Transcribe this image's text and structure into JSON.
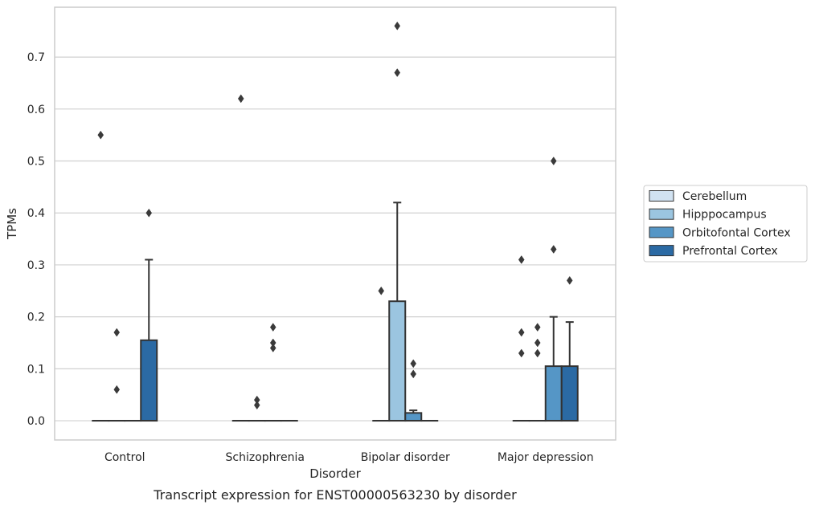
{
  "chart_data": {
    "type": "box",
    "caption": "Transcript expression for ENST00000563230 by disorder",
    "xlabel": "Disorder",
    "ylabel": "TPMs",
    "ylim": [
      -0.037,
      0.796
    ],
    "yticks": [
      0.0,
      0.1,
      0.2,
      0.3,
      0.4,
      0.5,
      0.6,
      0.7
    ],
    "ytick_labels": [
      "0.0",
      "0.1",
      "0.2",
      "0.3",
      "0.4",
      "0.5",
      "0.6",
      "0.7"
    ],
    "grid": "horizontal",
    "legend_position": "right",
    "categories": [
      "Control",
      "Schizophrenia",
      "Bipolar disorder",
      "Major depression"
    ],
    "series": [
      {
        "name": "Cerebellum",
        "color": "#d1e2f1",
        "boxes": [
          {
            "q1": 0,
            "median": 0,
            "q3": 0,
            "whisker_low": 0,
            "whisker_high": 0,
            "outliers": [
              0.55
            ]
          },
          {
            "q1": 0,
            "median": 0,
            "q3": 0,
            "whisker_low": 0,
            "whisker_high": 0,
            "outliers": [
              0.62
            ]
          },
          {
            "q1": 0,
            "median": 0,
            "q3": 0,
            "whisker_low": 0,
            "whisker_high": 0,
            "outliers": [
              0.25
            ]
          },
          {
            "q1": 0,
            "median": 0,
            "q3": 0,
            "whisker_low": 0,
            "whisker_high": 0,
            "outliers": [
              0.31,
              0.17,
              0.13
            ]
          }
        ]
      },
      {
        "name": "Hipppocampus",
        "color": "#9bc5e0",
        "boxes": [
          {
            "q1": 0,
            "median": 0,
            "q3": 0,
            "whisker_low": 0,
            "whisker_high": 0,
            "outliers": [
              0.17,
              0.06
            ]
          },
          {
            "q1": 0,
            "median": 0,
            "q3": 0,
            "whisker_low": 0,
            "whisker_high": 0,
            "outliers": [
              0.04,
              0.03
            ]
          },
          {
            "q1": 0,
            "median": 0,
            "q3": 0.23,
            "whisker_low": 0,
            "whisker_high": 0.42,
            "outliers": [
              0.76,
              0.67
            ]
          },
          {
            "q1": 0,
            "median": 0,
            "q3": 0,
            "whisker_low": 0,
            "whisker_high": 0,
            "outliers": [
              0.18,
              0.15,
              0.13
            ]
          }
        ]
      },
      {
        "name": "Orbitofontal Cortex",
        "color": "#5596c6",
        "boxes": [
          {
            "q1": 0,
            "median": 0,
            "q3": 0,
            "whisker_low": 0,
            "whisker_high": 0,
            "outliers": []
          },
          {
            "q1": 0,
            "median": 0,
            "q3": 0,
            "whisker_low": 0,
            "whisker_high": 0,
            "outliers": [
              0.18,
              0.15,
              0.14
            ]
          },
          {
            "q1": 0,
            "median": 0,
            "q3": 0.015,
            "whisker_low": 0,
            "whisker_high": 0.02,
            "outliers": [
              0.11,
              0.09
            ]
          },
          {
            "q1": 0,
            "median": 0,
            "q3": 0.105,
            "whisker_low": 0,
            "whisker_high": 0.2,
            "outliers": [
              0.5,
              0.33
            ]
          }
        ]
      },
      {
        "name": "Prefrontal Cortex",
        "color": "#2b6aa4",
        "boxes": [
          {
            "q1": 0,
            "median": 0,
            "q3": 0.155,
            "whisker_low": 0,
            "whisker_high": 0.31,
            "outliers": [
              0.4
            ]
          },
          {
            "q1": 0,
            "median": 0,
            "q3": 0,
            "whisker_low": 0,
            "whisker_high": 0,
            "outliers": []
          },
          {
            "q1": 0,
            "median": 0,
            "q3": 0,
            "whisker_low": 0,
            "whisker_high": 0,
            "outliers": []
          },
          {
            "q1": 0,
            "median": 0,
            "q3": 0.105,
            "whisker_low": 0,
            "whisker_high": 0.19,
            "outliers": [
              0.27
            ]
          }
        ]
      }
    ]
  }
}
